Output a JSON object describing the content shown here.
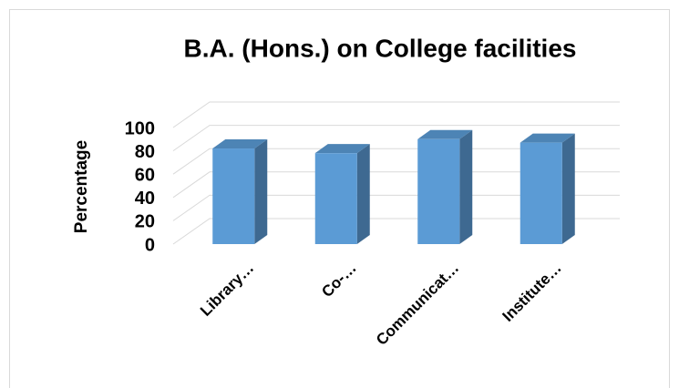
{
  "chart_data": {
    "type": "bar",
    "title": "B.A. (Hons.) on College facilities",
    "y_label": "Percentage",
    "categories": [
      "Library…",
      "Co-…",
      "Communicat…",
      "Institute…"
    ],
    "values": [
      82,
      78,
      90,
      87
    ],
    "color": "#5b9bd5",
    "ylim": [
      0,
      100
    ],
    "yticks": [
      0,
      20,
      40,
      60,
      80,
      100
    ],
    "grid": true
  }
}
